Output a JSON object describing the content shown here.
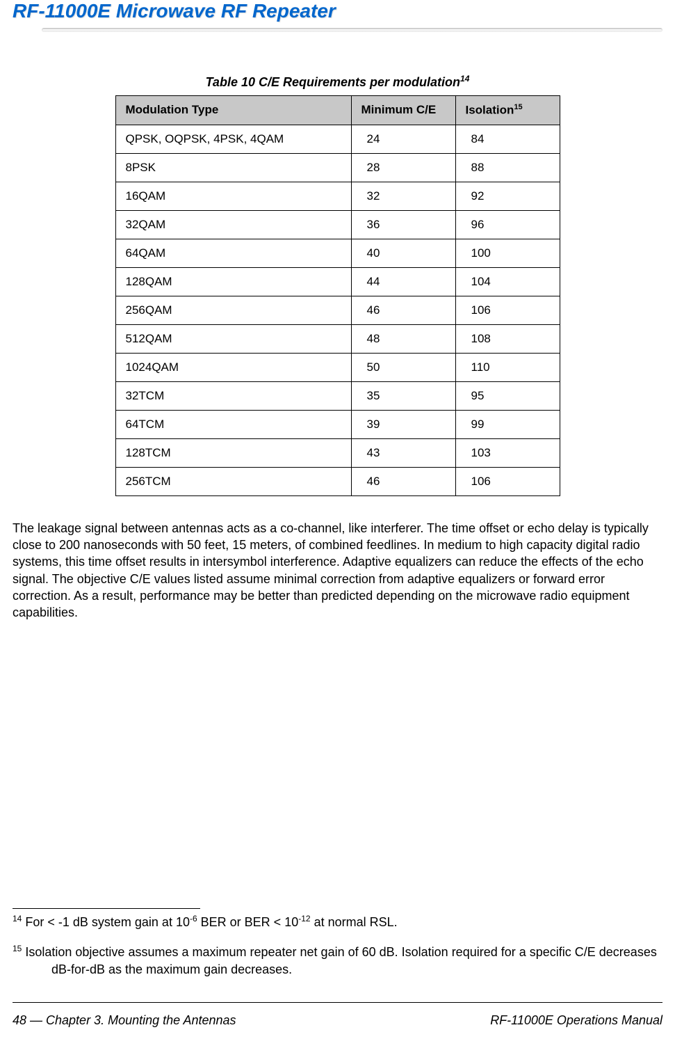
{
  "header": {
    "title": "RF-11000E Microwave RF Repeater",
    "title_color": "#0066cc"
  },
  "table": {
    "caption_prefix": "Table 10  ",
    "caption_text": "C/E Requirements per modulation",
    "caption_sup": "14",
    "columns": {
      "col1": "Modulation Type",
      "col2": "Minimum C/E",
      "col3_prefix": "Isolation",
      "col3_sup": "15"
    },
    "header_bg": "#c8c8c8",
    "border_color": "#000000",
    "rows": [
      {
        "type": "QPSK, OQPSK, 4PSK, 4QAM",
        "ce": "24",
        "iso": "84"
      },
      {
        "type": "8PSK",
        "ce": "28",
        "iso": "88"
      },
      {
        "type": "16QAM",
        "ce": "32",
        "iso": "92"
      },
      {
        "type": "32QAM",
        "ce": "36",
        "iso": "96"
      },
      {
        "type": "64QAM",
        "ce": "40",
        "iso": "100"
      },
      {
        "type": "128QAM",
        "ce": "44",
        "iso": "104"
      },
      {
        "type": "256QAM",
        "ce": "46",
        "iso": "106"
      },
      {
        "type": "512QAM",
        "ce": "48",
        "iso": "108"
      },
      {
        "type": "1024QAM",
        "ce": "50",
        "iso": "110"
      },
      {
        "type": "32TCM",
        "ce": "35",
        "iso": "95"
      },
      {
        "type": "64TCM",
        "ce": "39",
        "iso": "99"
      },
      {
        "type": "128TCM",
        "ce": "43",
        "iso": "103"
      },
      {
        "type": "256TCM",
        "ce": "46",
        "iso": "106"
      }
    ]
  },
  "paragraph": "The leakage signal between antennas acts as a co-channel, like interferer. The time offset or echo delay is typically close to 200 nanoseconds with 50 feet, 15 meters, of combined feedlines. In medium to high capacity digital radio systems, this time offset results in intersymbol interference. Adaptive equalizers can reduce the effects of the echo signal. The objective C/E values listed assume minimal correction from adaptive equalizers or forward error correction. As a result, performance may be better than predicted depending on the microwave radio equipment capabilities.",
  "footnotes": {
    "fn14": {
      "num": "14",
      "pre": " For < -1 dB system gain at 10",
      "sup1": "-6",
      "mid": " BER or BER < 10",
      "sup2": "-12",
      "post": " at normal RSL."
    },
    "fn15": {
      "num": "15",
      "text": " Isolation objective assumes a maximum repeater net gain of 60 dB. Isolation required for a specific C/E decreases dB-for-dB as the maximum gain decreases."
    }
  },
  "footer": {
    "left": "48 — Chapter 3. Mounting the Antennas",
    "right": "RF-11000E Operations Manual"
  }
}
